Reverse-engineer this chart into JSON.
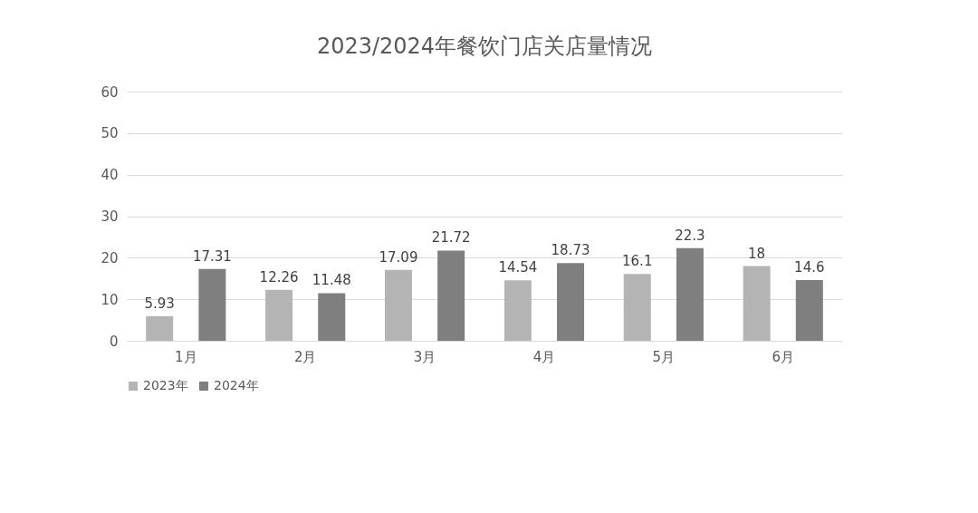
{
  "chart_data": {
    "type": "bar",
    "title": "2023/2024年餐饮门店关店量情况",
    "categories": [
      "1月",
      "2月",
      "3月",
      "4月",
      "5月",
      "6月"
    ],
    "series": [
      {
        "name": "2023年",
        "color": "#b4b4b4",
        "values": [
          5.93,
          12.26,
          17.09,
          14.54,
          16.1,
          18
        ]
      },
      {
        "name": "2024年",
        "color": "#7f7f7f",
        "values": [
          17.31,
          11.48,
          21.72,
          18.73,
          22.3,
          14.6
        ]
      }
    ],
    "ylim": [
      0,
      60
    ],
    "yticks": [
      0,
      10,
      20,
      30,
      40,
      50,
      60
    ],
    "grid": "y",
    "legend": "bottom",
    "data_labels": true
  }
}
